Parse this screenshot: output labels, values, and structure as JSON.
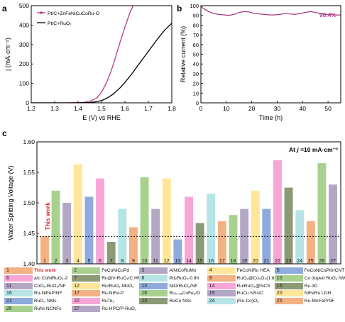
{
  "panels": {
    "a": {
      "letter": "a",
      "xlabel": "E (V) vs RHE",
      "ylabel": "j (mA·cm⁻²)",
      "xlim": [
        1.2,
        1.8
      ],
      "ylim": [
        0,
        500
      ],
      "xticks": [
        "1.2",
        "1.3",
        "1.4",
        "1.5",
        "1.6",
        "1.7",
        "1.8"
      ],
      "yticks": [
        "0",
        "100",
        "200",
        "300",
        "400",
        "500"
      ],
      "legend": [
        {
          "label": "Pt/C+ZnFeNiCuCoRu-O",
          "color": "#b03a8a"
        },
        {
          "label": "Pt/C+RuO₂",
          "color": "#000000"
        }
      ],
      "series": [
        {
          "name": "Pt/C+ZnFeNiCuCoRu-O",
          "color": "#b03a8a",
          "x": [
            1.2,
            1.35,
            1.42,
            1.45,
            1.48,
            1.5,
            1.52,
            1.54,
            1.56,
            1.58,
            1.6,
            1.62,
            1.635
          ],
          "y": [
            0,
            0,
            2,
            8,
            25,
            55,
            100,
            160,
            235,
            315,
            390,
            460,
            500
          ]
        },
        {
          "name": "Pt/C+RuO₂",
          "color": "#000000",
          "x": [
            1.2,
            1.4,
            1.45,
            1.48,
            1.5,
            1.52,
            1.55,
            1.58,
            1.6,
            1.63,
            1.66,
            1.7,
            1.74,
            1.77,
            1.8
          ],
          "y": [
            0,
            0,
            2,
            6,
            12,
            22,
            45,
            78,
            105,
            150,
            200,
            265,
            330,
            375,
            410
          ]
        }
      ]
    },
    "b": {
      "letter": "b",
      "xlabel": "Time (h)",
      "ylabel": "Relative current (%)",
      "xlim": [
        0,
        55
      ],
      "ylim": [
        0,
        100
      ],
      "xticks": [
        "0",
        "10",
        "20",
        "30",
        "40",
        "50"
      ],
      "yticks": [
        "0",
        "10",
        "20",
        "30",
        "40",
        "50",
        "60",
        "70",
        "80",
        "90",
        "100"
      ],
      "annotation": "90.4%",
      "color": "#b03a8a",
      "series": {
        "x": [
          0,
          1,
          3,
          5,
          7,
          9,
          11,
          13,
          15,
          17,
          19,
          21,
          23,
          25,
          27,
          29,
          31,
          33,
          35,
          37,
          39,
          41,
          43,
          45,
          47,
          49,
          51,
          53,
          55
        ],
        "y": [
          100,
          97,
          94,
          92,
          91,
          90.5,
          90,
          91,
          93,
          94,
          93.5,
          92,
          91.5,
          91,
          90.5,
          90.5,
          91,
          92,
          91.5,
          91,
          92,
          93,
          94,
          93,
          92,
          91,
          90.8,
          90.5,
          90.4
        ]
      }
    },
    "c": {
      "letter": "c",
      "ylabel": "Water Splitting Voltage (V)",
      "annotation_prefix": "At ",
      "annotation_var": "j",
      "annotation_suffix": " =10 mA·cm⁻²",
      "this_work": "This work",
      "ylim": [
        1.4,
        1.6
      ],
      "yticks": [
        "1.40",
        "1.45",
        "1.50",
        "1.55",
        "1.60"
      ],
      "reference_line": 1.445,
      "categories": [
        "1",
        "2",
        "3",
        "4",
        "5",
        "6",
        "7",
        "8",
        "9",
        "10",
        "11",
        "12",
        "13",
        "14",
        "15",
        "16",
        "17",
        "18",
        "19",
        "20",
        "21",
        "22",
        "23",
        "24",
        "25",
        "26",
        "27"
      ],
      "values": [
        1.445,
        1.52,
        1.5,
        1.563,
        1.51,
        1.54,
        1.436,
        1.49,
        1.46,
        1.542,
        1.49,
        1.54,
        1.44,
        1.51,
        1.467,
        1.515,
        1.47,
        1.48,
        1.49,
        1.52,
        1.49,
        1.57,
        1.525,
        1.488,
        1.47,
        1.565,
        1.53
      ],
      "colors": [
        "#f4b183",
        "#a9d18e",
        "#b4a7c6",
        "#ffe699",
        "#8faadc",
        "#f8a5d8",
        "#8c9a76",
        "#b7e4e6",
        "#f4b183",
        "#a9d18e",
        "#b4a7c6",
        "#ffe699",
        "#8faadc",
        "#f8a5d8",
        "#8c9a76",
        "#b7e4e6",
        "#f4b183",
        "#a9d18e",
        "#b4a7c6",
        "#ffe699",
        "#8faadc",
        "#f8a5d8",
        "#8c9a76",
        "#b7e4e6",
        "#f4b183",
        "#a9d18e",
        "#b4a7c6"
      ],
      "legend": [
        "This work",
        "FeCoNiCuPd",
        "AlNiCoRuMo",
        "FeCoNiRu HEA",
        "FeCoNiCuPtIr/CNT",
        "a/c CoNiRuO₂-2",
        "Ru@V-RuO₂/C HM S",
        "Pd₂RuO₂-0.8h",
        "RuO₂@Co₂O₄(1:8)",
        "Co doped RuO₂ NWs",
        "CoOₓ-RuO₂/NF",
        "Ru/RuO₂-MoO₂",
        "NiO/RuO₂/NF",
        "Ru/RuO₂@NCS",
        "Ru-30",
        "Ru-NiFeP/NF",
        "Ru-NiFe-P",
        "Ru₀.₂₅CoFe₂/G",
        "RuCu NSs/C",
        "NiFeRu LDH",
        "RuO₂ NMs",
        "RuTe₂",
        "RuCo NSs",
        "(Ru-Co)Oₓ",
        "Ru-MnFeP/NF",
        "RuNi-NCNFs",
        "Ru-HPC/P-RuO₂"
      ]
    }
  }
}
